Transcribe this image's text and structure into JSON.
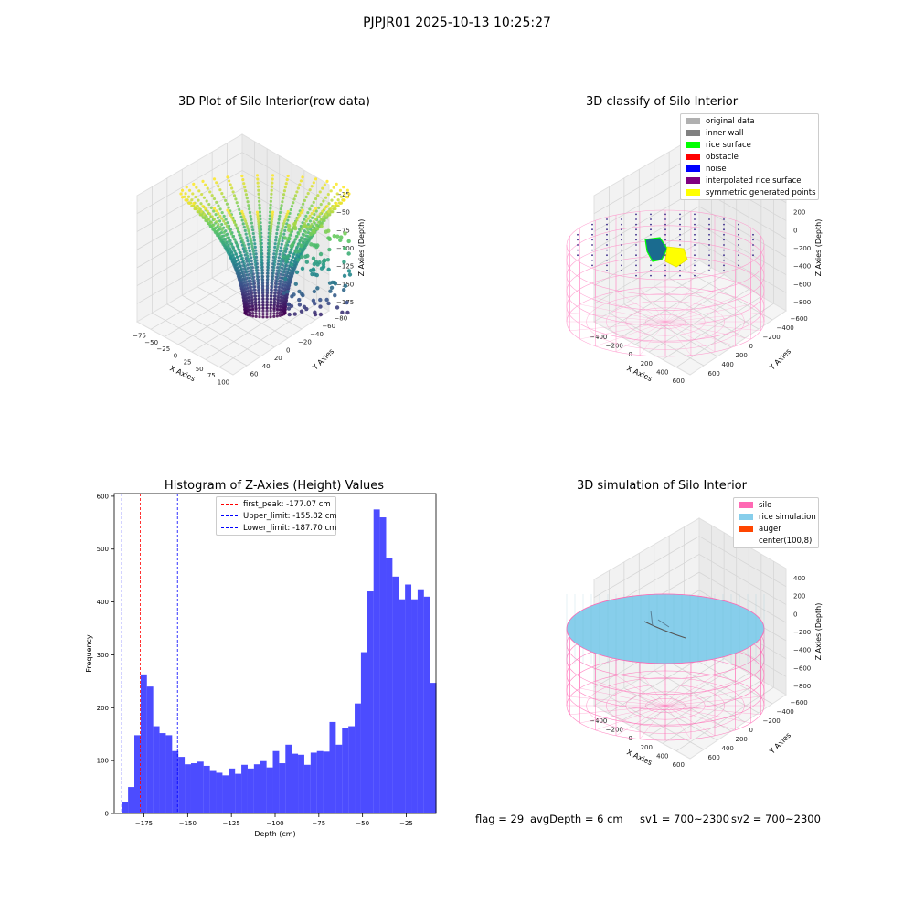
{
  "suptitle": "PJPJR01 2025-10-13 10:25:27",
  "footer": {
    "flag": "flag = 29",
    "avg_depth": "avgDepth = 6 cm",
    "sv1": "sv1 = 700~2300",
    "sv2": "sv2 = 700~2300"
  },
  "chart_data": [
    {
      "type": "scatter",
      "title": "3D Plot of Silo Interior(row data)",
      "xlabel": "X Axies",
      "ylabel": "Y Axies",
      "zlabel": "Z Axies (Depth)",
      "xticks": [
        "−75",
        "−50",
        "−25",
        "0",
        "25",
        "50",
        "75",
        "100"
      ],
      "yticks": [
        "−80",
        "−60",
        "−40",
        "−20",
        "0",
        "20",
        "40",
        "60"
      ],
      "zticks": [
        "−25",
        "−50",
        "−75",
        "−100",
        "−125",
        "−150",
        "−175"
      ],
      "colormap": "viridis",
      "zlim": [
        -190,
        -10
      ]
    },
    {
      "type": "scatter",
      "title": "3D classify of Silo Interior",
      "xlabel": "X Axies",
      "ylabel": "Y Axies",
      "zlabel": "Z Axies (Depth)",
      "xticks": [
        "−400",
        "−200",
        "0",
        "200",
        "400",
        "600"
      ],
      "yticks": [
        "−600",
        "−400",
        "−200",
        "0",
        "200",
        "400",
        "600"
      ],
      "zticks": [
        "400",
        "200",
        "0",
        "−200",
        "−400",
        "−600",
        "−800"
      ],
      "legend_position": "top-right",
      "legend": [
        {
          "label": "original data",
          "color": "#b0b0b0"
        },
        {
          "label": "inner wall",
          "color": "#808080"
        },
        {
          "label": "rice surface",
          "color": "#00ff00"
        },
        {
          "label": "obstacle",
          "color": "#ff0000"
        },
        {
          "label": "noise",
          "color": "#0000ff"
        },
        {
          "label": "interpolated rice surface",
          "color": "#800080"
        },
        {
          "label": "symmetric generated points",
          "color": "#ffff00"
        }
      ]
    },
    {
      "type": "bar",
      "title": "Histogram of Z-Axies (Height) Values",
      "xlabel": "Depth (cm)",
      "ylabel": "Frequency",
      "bar_color": "#0000ff",
      "bar_opacity": 0.7,
      "xlim": [
        -192,
        -8
      ],
      "ylim": [
        0,
        605
      ],
      "xticks": [
        -175,
        -150,
        -125,
        -100,
        -75,
        -50,
        -25
      ],
      "yticks": [
        0,
        100,
        200,
        300,
        400,
        500,
        600
      ],
      "bin_start": -187.7,
      "bin_width": 3.6,
      "values": [
        22,
        50,
        148,
        263,
        240,
        165,
        152,
        148,
        118,
        107,
        93,
        95,
        98,
        90,
        82,
        77,
        72,
        85,
        75,
        92,
        85,
        93,
        99,
        87,
        118,
        95,
        130,
        113,
        111,
        92,
        115,
        118,
        117,
        173,
        130,
        162,
        165,
        208,
        305,
        420,
        575,
        560,
        484,
        448,
        405,
        433,
        405,
        424,
        410,
        247
      ],
      "vlines": [
        {
          "label": "first_peak: -177.07 cm",
          "x": -177.07,
          "color": "#ff0000"
        },
        {
          "label": "Upper_limit: -155.82 cm",
          "x": -155.82,
          "color": "#0000ff"
        },
        {
          "label": "Lower_limit: -187.70 cm",
          "x": -187.7,
          "color": "#0000ff"
        }
      ],
      "legend_position": "top"
    },
    {
      "type": "scatter",
      "title": "3D simulation of Silo Interior",
      "xlabel": "X Axies",
      "ylabel": "Y Axies",
      "zlabel": "Z Axies (Depth)",
      "xticks": [
        "−400",
        "−200",
        "0",
        "200",
        "400",
        "600"
      ],
      "yticks": [
        "−600",
        "−400",
        "−200",
        "0",
        "200",
        "400",
        "600"
      ],
      "zticks": [
        "400",
        "200",
        "0",
        "−200",
        "−400",
        "−600",
        "−800"
      ],
      "legend_position": "top-right",
      "legend": [
        {
          "label": "silo",
          "color": "#ff69b4"
        },
        {
          "label": "rice simulation",
          "color": "#87ceeb"
        },
        {
          "label": "auger",
          "color": "#ff4500"
        },
        {
          "label": "center(100,8)",
          "color": "#ffffff"
        }
      ]
    }
  ]
}
